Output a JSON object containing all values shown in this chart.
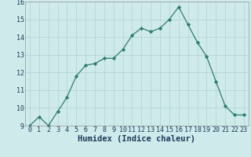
{
  "x": [
    0,
    1,
    2,
    3,
    4,
    5,
    6,
    7,
    8,
    9,
    10,
    11,
    12,
    13,
    14,
    15,
    16,
    17,
    18,
    19,
    20,
    21,
    22,
    23
  ],
  "y": [
    9.0,
    9.5,
    9.0,
    9.8,
    10.6,
    11.8,
    12.4,
    12.5,
    12.8,
    12.8,
    13.3,
    14.1,
    14.5,
    14.3,
    14.5,
    15.0,
    15.7,
    14.7,
    13.7,
    12.9,
    11.5,
    10.1,
    9.6,
    9.6
  ],
  "xlabel": "Humidex (Indice chaleur)",
  "ylim": [
    9,
    16
  ],
  "xlim": [
    -0.5,
    23.5
  ],
  "yticks": [
    9,
    10,
    11,
    12,
    13,
    14,
    15,
    16
  ],
  "xticks": [
    0,
    1,
    2,
    3,
    4,
    5,
    6,
    7,
    8,
    9,
    10,
    11,
    12,
    13,
    14,
    15,
    16,
    17,
    18,
    19,
    20,
    21,
    22,
    23
  ],
  "line_color": "#2e7d6e",
  "marker": "D",
  "marker_size": 2.2,
  "bg_color": "#ceeaea",
  "grid_color": "#b8d5d5",
  "tick_label_fontsize": 6.0,
  "xlabel_fontsize": 7.5,
  "xlabel_color": "#1a3a5c",
  "tick_color": "#1a3a5c"
}
